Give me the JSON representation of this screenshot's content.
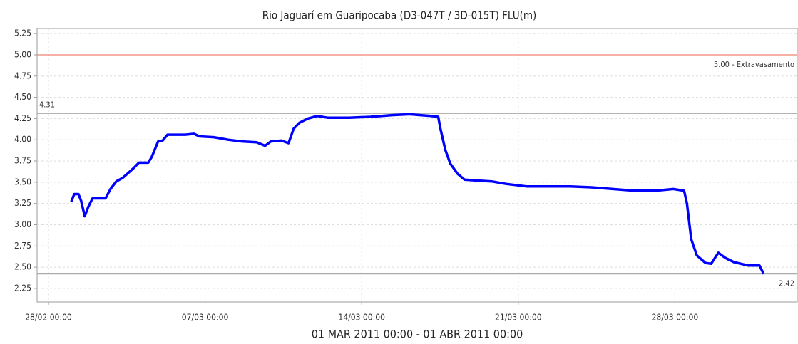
{
  "chart_data": {
    "type": "line",
    "title": "Rio Jaguarí em Guaripocaba (D3-047T / 3D-015T) FLU(m)",
    "subtitle": "01 MAR 2011 00:00 - 01 ABR 2011 00:00",
    "color": "#0000ff",
    "grid": true,
    "xlim": [
      -0.51,
      33.47
    ],
    "xticks": [
      {
        "value": 0,
        "label": "28/02 00:00"
      },
      {
        "value": 7,
        "label": "07/03 00:00"
      },
      {
        "value": 14,
        "label": "14/03 00:00"
      },
      {
        "value": 21,
        "label": "21/03 00:00"
      },
      {
        "value": 28,
        "label": "28/03 00:00"
      }
    ],
    "ylim": [
      2.09,
      5.31
    ],
    "yticks": [
      5.25,
      {
        "value": 5,
        "label": "5.00"
      },
      4.75,
      {
        "value": 4.5,
        "label": "4.50"
      },
      4.25,
      {
        "value": 4,
        "label": "4.00"
      },
      3.75,
      {
        "value": 3.5,
        "label": "3.50"
      },
      3.25,
      {
        "value": 3,
        "label": "3.00"
      },
      2.75,
      {
        "value": 2.5,
        "label": "2.50"
      },
      2.25
    ],
    "reference_lines": [
      {
        "value": 5.0,
        "label": "5.00 - Extravasamento",
        "color": "#f08070"
      },
      {
        "value": 4.31,
        "label": "4.31",
        "color": "#aaaaaa"
      },
      {
        "value": 2.42,
        "label": "2.42",
        "color": "#aaaaaa"
      }
    ],
    "x": [
      1.02,
      1.15,
      1.34,
      1.46,
      1.62,
      1.78,
      1.97,
      2.55,
      2.77,
      3.03,
      3.31,
      3.57,
      3.82,
      4.04,
      4.46,
      4.62,
      4.9,
      5.1,
      5.32,
      5.64,
      6.11,
      6.5,
      6.75,
      7.39,
      8.03,
      8.66,
      9.3,
      9.68,
      9.94,
      10.41,
      10.73,
      10.96,
      11.21,
      11.59,
      12.01,
      12.48,
      13.44,
      14.39,
      15.35,
      16.15,
      16.62,
      17.1,
      17.42,
      17.52,
      17.74,
      17.96,
      18.28,
      18.6,
      19.17,
      19.81,
      20.45,
      21.4,
      22.36,
      23.31,
      24.27,
      25.22,
      26.18,
      27.13,
      27.93,
      28.41,
      28.54,
      28.73,
      28.98,
      29.36,
      29.62,
      29.94,
      30.25,
      30.64,
      31.27,
      31.78,
      31.97
    ],
    "values": [
      3.27,
      3.36,
      3.36,
      3.28,
      3.1,
      3.21,
      3.31,
      3.31,
      3.42,
      3.51,
      3.55,
      3.61,
      3.67,
      3.73,
      3.73,
      3.8,
      3.98,
      3.99,
      4.06,
      4.06,
      4.06,
      4.07,
      4.04,
      4.03,
      4.0,
      3.98,
      3.97,
      3.93,
      3.98,
      3.99,
      3.96,
      4.13,
      4.2,
      4.25,
      4.28,
      4.26,
      4.26,
      4.27,
      4.29,
      4.3,
      4.29,
      4.28,
      4.27,
      4.13,
      3.88,
      3.72,
      3.6,
      3.53,
      3.52,
      3.51,
      3.48,
      3.45,
      3.45,
      3.45,
      3.44,
      3.42,
      3.4,
      3.4,
      3.42,
      3.4,
      3.25,
      2.83,
      2.64,
      2.55,
      2.54,
      2.67,
      2.61,
      2.56,
      2.52,
      2.52,
      2.42
    ]
  }
}
